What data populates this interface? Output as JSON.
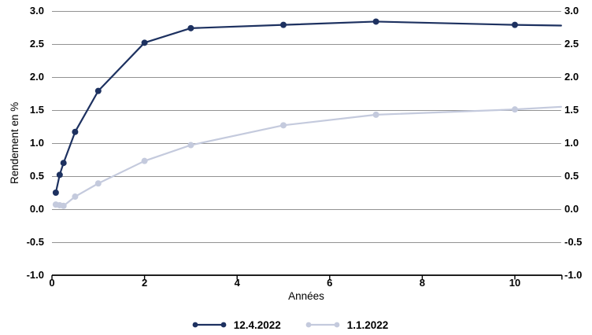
{
  "chart_data": {
    "type": "line",
    "title": "",
    "xlabel": "Années",
    "ylabel": "Rendement en %",
    "xlim": [
      0,
      11
    ],
    "ylim": [
      -1.0,
      3.0
    ],
    "grid": "horizontal-gray-lines",
    "legend_position": "bottom-center",
    "x_ticks": [
      {
        "v": 0,
        "label": "0"
      },
      {
        "v": 2,
        "label": "2"
      },
      {
        "v": 4,
        "label": "4"
      },
      {
        "v": 6,
        "label": "6"
      },
      {
        "v": 8,
        "label": "8"
      },
      {
        "v": 10,
        "label": "10"
      }
    ],
    "y_ticks": [
      {
        "v": 3.0,
        "label": "3.0"
      },
      {
        "v": 2.5,
        "label": "2.5"
      },
      {
        "v": 2.0,
        "label": "2.0"
      },
      {
        "v": 1.5,
        "label": "1.5"
      },
      {
        "v": 1.0,
        "label": "1.0"
      },
      {
        "v": 0.5,
        "label": "0.5"
      },
      {
        "v": 0.0,
        "label": "0.0"
      },
      {
        "v": -0.5,
        "label": "-0.5"
      },
      {
        "v": -1.0,
        "label": "-1.0"
      }
    ],
    "series": [
      {
        "name": "12.4.2022",
        "color": "#1d3160",
        "marker_max_x": 10,
        "x": [
          0.083,
          0.167,
          0.25,
          0.5,
          1,
          2,
          3,
          5,
          7,
          10,
          11
        ],
        "y": [
          0.25,
          0.52,
          0.7,
          1.17,
          1.79,
          2.52,
          2.74,
          2.79,
          2.84,
          2.79,
          2.78
        ]
      },
      {
        "name": "1.1.2022",
        "color": "#c4cadd",
        "marker_max_x": 10,
        "x": [
          0.083,
          0.167,
          0.25,
          0.5,
          1,
          2,
          3,
          5,
          7,
          10,
          11
        ],
        "y": [
          0.07,
          0.06,
          0.05,
          0.19,
          0.39,
          0.73,
          0.97,
          1.27,
          1.43,
          1.51,
          1.55
        ]
      }
    ]
  },
  "style": {
    "gridline_color": "#929292",
    "axis_color": "#000000",
    "background": "#ffffff"
  }
}
